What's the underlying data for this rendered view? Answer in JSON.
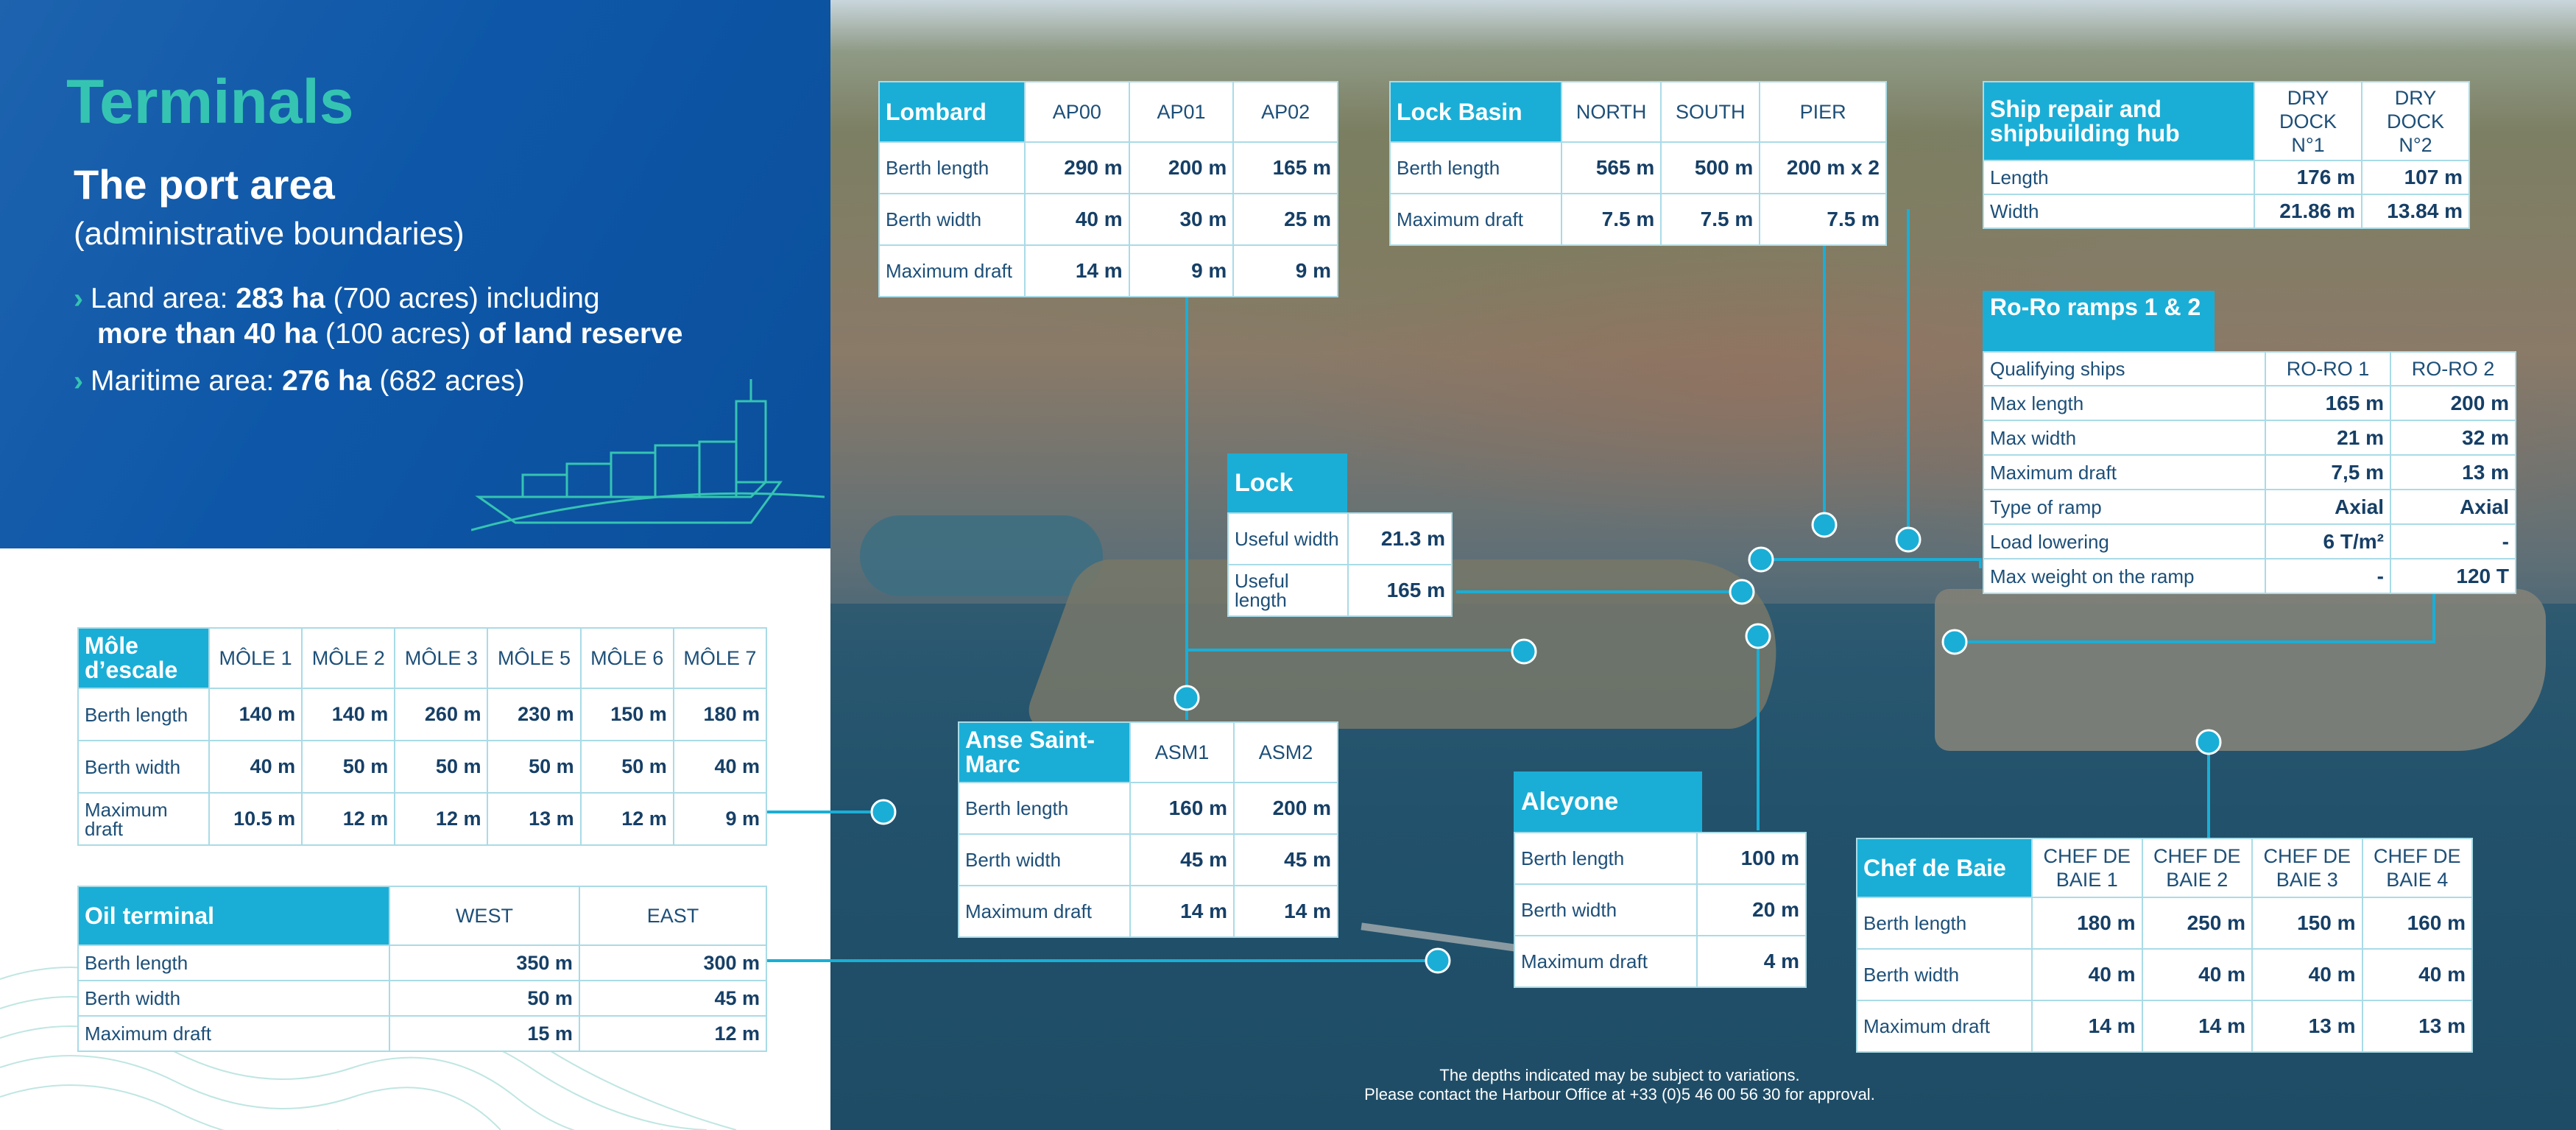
{
  "header": {
    "title": "Terminals",
    "subtitle": "The port area",
    "subtitle2": "(administrative boundaries)",
    "bullets": [
      {
        "line1_pre": "Land area: ",
        "line1_bold": "283 ha",
        "line1_post": " (700 acres) including",
        "line2_bold": "more than 40 ha",
        "line2_mid": " (100 acres) ",
        "line2_bold2": "of land reserve"
      },
      {
        "pre": "Maritime area: ",
        "bold": "276 ha",
        "post": " (682 acres)"
      }
    ]
  },
  "tables": {
    "lombard": {
      "title": "Lombard",
      "cols": [
        "AP00",
        "AP01",
        "AP02"
      ],
      "rows": [
        {
          "label": "Berth length",
          "values": [
            "290 m",
            "200 m",
            "165 m"
          ]
        },
        {
          "label": "Berth width",
          "values": [
            "40 m",
            "30 m",
            "25 m"
          ]
        },
        {
          "label": "Maximum draft",
          "values": [
            "14 m",
            "9 m",
            "9 m"
          ]
        }
      ]
    },
    "lock_basin": {
      "title": "Lock Basin",
      "cols": [
        "NORTH",
        "SOUTH",
        "PIER"
      ],
      "rows": [
        {
          "label": "Berth length",
          "values": [
            "565 m",
            "500 m",
            "200 m x 2"
          ]
        },
        {
          "label": "Maximum draft",
          "values": [
            "7.5 m",
            "7.5 m",
            "7.5 m"
          ]
        }
      ]
    },
    "ship_repair": {
      "title": "Ship repair and shipbuilding hub",
      "cols": [
        "DRY DOCK N°1",
        "DRY DOCK N°2"
      ],
      "rows": [
        {
          "label": "Length",
          "values": [
            "176 m",
            "107 m"
          ]
        },
        {
          "label": "Width",
          "values": [
            "21.86 m",
            "13.84 m"
          ]
        }
      ]
    },
    "roro": {
      "title": "Ro-Ro ramps 1 & 2",
      "rows": [
        {
          "label": "Qualifying ships",
          "values": [
            "RO-RO 1",
            "RO-RO 2"
          ]
        },
        {
          "label": "Max length",
          "values": [
            "165 m",
            "200 m"
          ]
        },
        {
          "label": "Max width",
          "values": [
            "21 m",
            "32 m"
          ]
        },
        {
          "label": "Maximum draft",
          "values": [
            "7,5 m",
            "13 m"
          ]
        },
        {
          "label": "Type of ramp",
          "values": [
            "Axial",
            "Axial"
          ]
        },
        {
          "label": "Load lowering",
          "values": [
            "6 T/m²",
            "-"
          ]
        },
        {
          "label": "Max weight on the ramp",
          "values": [
            "-",
            "120 T"
          ]
        }
      ]
    },
    "lock": {
      "title": "Lock",
      "rows": [
        {
          "label": "Useful width",
          "value": "21.3 m"
        },
        {
          "label": "Useful length",
          "value": "165 m"
        }
      ]
    },
    "mole": {
      "title": "Môle d’escale",
      "cols": [
        "MÔLE 1",
        "MÔLE 2",
        "MÔLE 3",
        "MÔLE 5",
        "MÔLE 6",
        "MÔLE 7"
      ],
      "rows": [
        {
          "label": "Berth length",
          "values": [
            "140 m",
            "140 m",
            "260 m",
            "230 m",
            "150 m",
            "180 m"
          ]
        },
        {
          "label": "Berth width",
          "values": [
            "40 m",
            "50 m",
            "50 m",
            "50 m",
            "50 m",
            "40 m"
          ]
        },
        {
          "label": "Maximum draft",
          "values": [
            "10.5 m",
            "12 m",
            "12 m",
            "13 m",
            "12 m",
            "9 m"
          ]
        }
      ]
    },
    "oil": {
      "title": "Oil terminal",
      "cols": [
        "WEST",
        "EAST"
      ],
      "rows": [
        {
          "label": "Berth length",
          "values": [
            "350 m",
            "300 m"
          ]
        },
        {
          "label": "Berth width",
          "values": [
            "50 m",
            "45 m"
          ]
        },
        {
          "label": "Maximum draft",
          "values": [
            "15 m",
            "12 m"
          ]
        }
      ]
    },
    "anse": {
      "title": "Anse Saint-Marc",
      "cols": [
        "ASM1",
        "ASM2"
      ],
      "rows": [
        {
          "label": "Berth length",
          "values": [
            "160 m",
            "200 m"
          ]
        },
        {
          "label": "Berth width",
          "values": [
            "45 m",
            "45 m"
          ]
        },
        {
          "label": "Maximum draft",
          "values": [
            "14 m",
            "14 m"
          ]
        }
      ]
    },
    "alcyone": {
      "title": "Alcyone",
      "rows": [
        {
          "label": "Berth length",
          "value": "100 m"
        },
        {
          "label": "Berth width",
          "value": "20 m"
        },
        {
          "label": "Maximum draft",
          "value": "4 m"
        }
      ]
    },
    "chef": {
      "title": "Chef de Baie",
      "cols": [
        "CHEF DE BAIE 1",
        "CHEF DE BAIE 2",
        "CHEF DE BAIE 3",
        "CHEF DE BAIE 4"
      ],
      "rows": [
        {
          "label": "Berth length",
          "values": [
            "180 m",
            "250 m",
            "150 m",
            "160 m"
          ]
        },
        {
          "label": "Berth width",
          "values": [
            "40 m",
            "40 m",
            "40 m",
            "40 m"
          ]
        },
        {
          "label": "Maximum draft",
          "values": [
            "14 m",
            "14 m",
            "13 m",
            "13 m"
          ]
        }
      ]
    }
  },
  "footer": {
    "line1": "The depths indicated may be subject to variations.",
    "line2": "Please contact the Harbour Office at +33 (0)5 46 00 56 30 for approval."
  },
  "colors": {
    "accent": "#1aaed6",
    "teal": "#35c4b2",
    "navy": "#0e57a8",
    "text": "#163f66"
  }
}
